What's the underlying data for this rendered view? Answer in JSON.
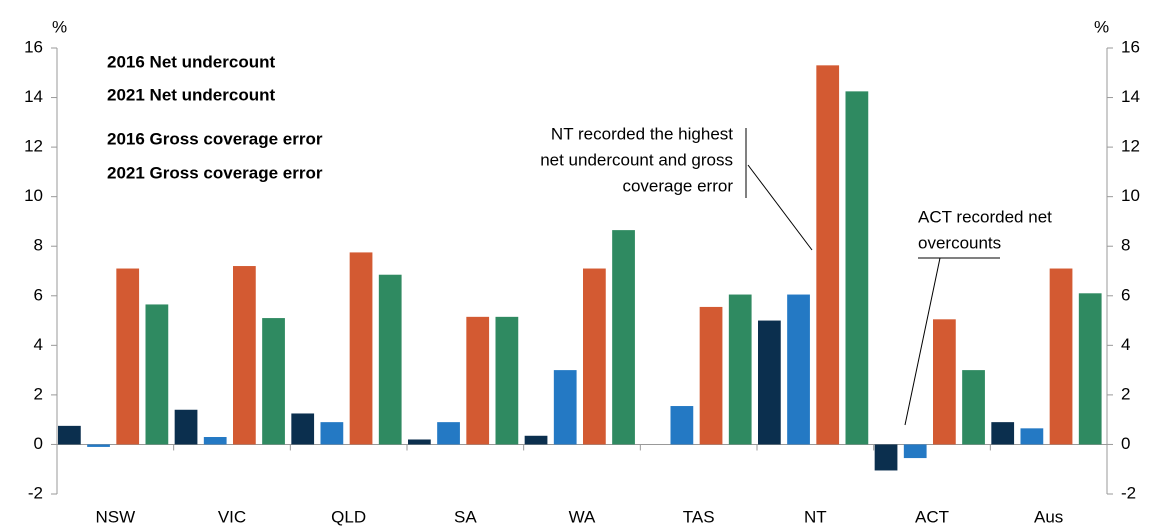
{
  "chart_data": {
    "type": "bar",
    "y_unit_left": "%",
    "y_unit_right": "%",
    "categories": [
      "NSW",
      "VIC",
      "QLD",
      "SA",
      "WA",
      "TAS",
      "NT",
      "ACT",
      "Aus"
    ],
    "series": [
      {
        "name": "2016 Net undercount",
        "color": "#0b2f4e",
        "values": [
          0.75,
          1.4,
          1.25,
          0.2,
          0.35,
          0,
          5.0,
          -1.05,
          0.9
        ]
      },
      {
        "name": "2021 Net undercount",
        "color": "#2479c4",
        "values": [
          -0.1,
          0.3,
          0.9,
          0.9,
          3.0,
          1.55,
          6.05,
          -0.55,
          0.65
        ]
      },
      {
        "name": "2016 Gross coverage error",
        "color": "#d35a32",
        "values": [
          7.1,
          7.2,
          7.75,
          5.15,
          7.1,
          5.55,
          15.3,
          5.05,
          7.1
        ]
      },
      {
        "name": "2021 Gross coverage error",
        "color": "#2f8a61",
        "values": [
          5.65,
          5.1,
          6.85,
          5.15,
          8.65,
          6.05,
          14.25,
          3.0,
          6.1
        ]
      }
    ],
    "annotations": [
      [
        "NT recorded the highest",
        "net undercount and gross",
        "coverage error"
      ],
      [
        "ACT recorded net",
        "overcounts"
      ]
    ],
    "ylim": [
      -2,
      16
    ],
    "yticks": [
      -2,
      0,
      2,
      4,
      6,
      8,
      10,
      12,
      14,
      16
    ],
    "y2lim": [
      -2,
      16
    ],
    "y2ticks": [
      -2,
      0,
      2,
      4,
      6,
      8,
      10,
      12,
      14,
      16
    ]
  }
}
